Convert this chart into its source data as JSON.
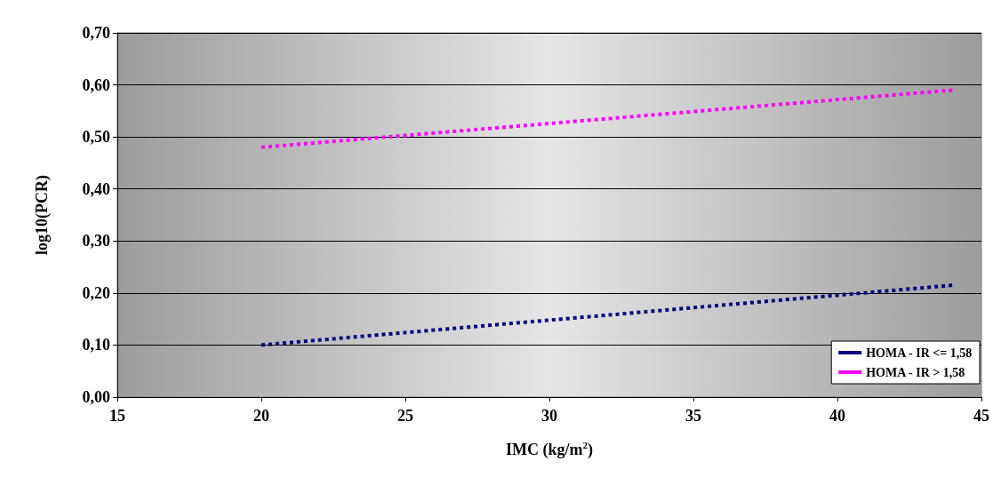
{
  "chart_data": {
    "type": "line",
    "xlabel": "IMC (kg/m$^{2}$)",
    "ylabel": "log10(PCR)",
    "x": [
      20,
      44
    ],
    "series": [
      {
        "name": "HOMA - IR <= 1,58",
        "color": "#000080",
        "values": [
          0.1,
          0.215
        ]
      },
      {
        "name": "HOMA - IR > 1,58",
        "color": "#ff00ff",
        "values": [
          0.48,
          0.59
        ]
      }
    ],
    "xlim": [
      15,
      45
    ],
    "xticks": [
      15,
      20,
      25,
      30,
      35,
      40,
      45
    ],
    "ylim": [
      0,
      0.7
    ],
    "yticks": [
      {
        "value": 0,
        "label": "0,00"
      },
      {
        "value": 0.1,
        "label": "0,10"
      },
      {
        "value": 0.2,
        "label": "0,20"
      },
      {
        "value": 0.3,
        "label": "0,30"
      },
      {
        "value": 0.4,
        "label": "0,40"
      },
      {
        "value": 0.5,
        "label": "0,50"
      },
      {
        "value": 0.6,
        "label": "0,60"
      },
      {
        "value": 0.7,
        "label": "0,70"
      }
    ],
    "grid": "y",
    "legend": "bottom right",
    "marker": "none",
    "line_style": "dotted"
  }
}
